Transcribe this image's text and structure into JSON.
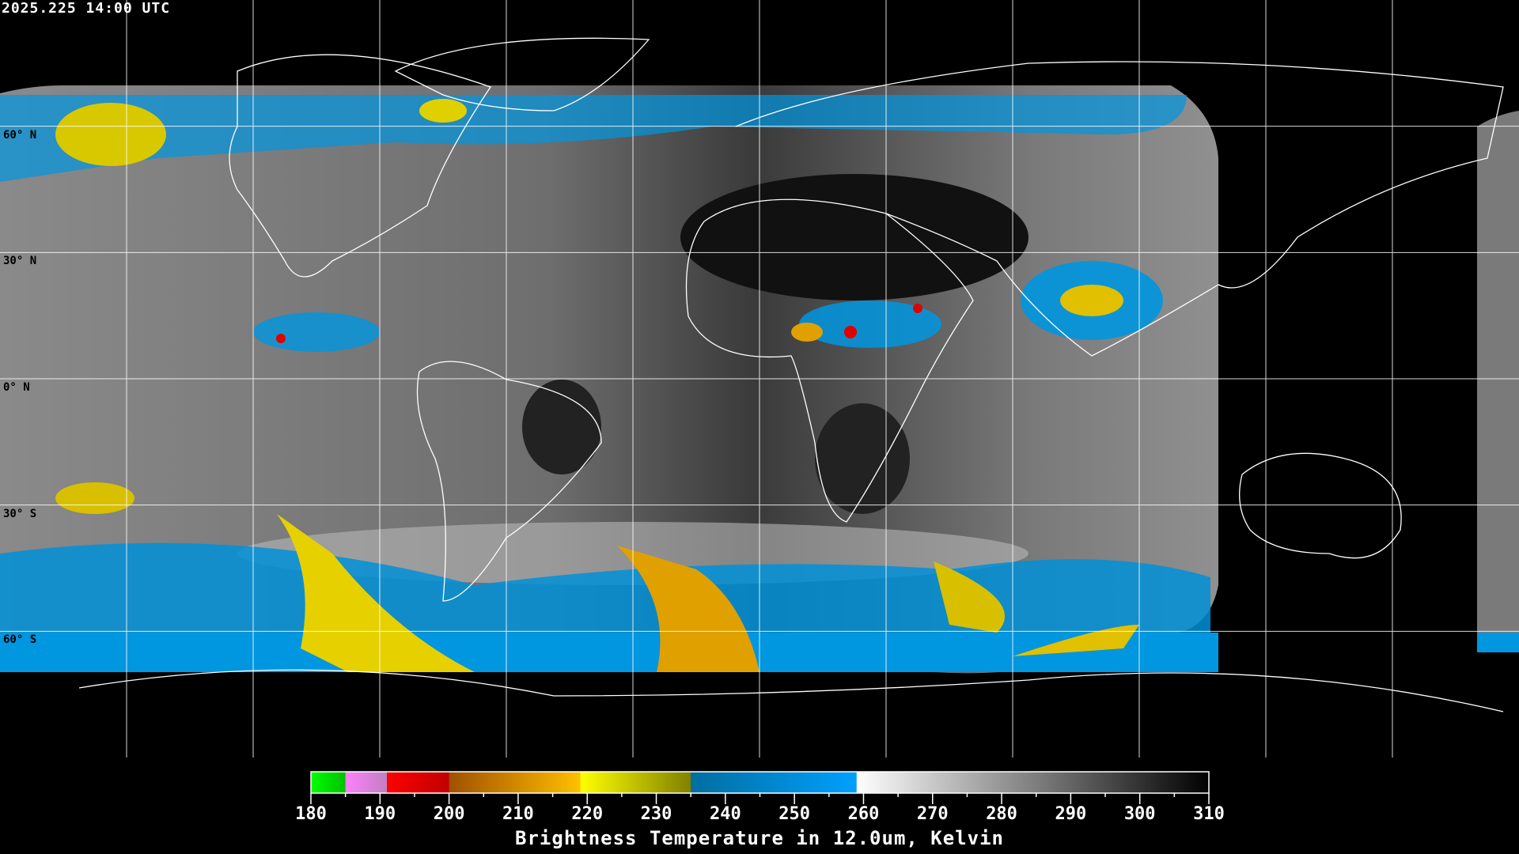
{
  "timestamp": "2025.225 14:00 UTC",
  "map": {
    "projection": "equirectangular",
    "grid_spacing_deg": 30,
    "lat_labels": [
      {
        "lat": 60,
        "label": "60° N"
      },
      {
        "lat": 30,
        "label": "30° N"
      },
      {
        "lat": 0,
        "label": "0° N"
      },
      {
        "lat": -30,
        "label": "30° S"
      },
      {
        "lat": -60,
        "label": "60° S"
      }
    ],
    "background": "#000000",
    "coastline_color": "#ffffff",
    "grid_color": "#ffffff"
  },
  "colorbar": {
    "min": 180,
    "max": 310,
    "tick_labels": [
      "180",
      "190",
      "200",
      "210",
      "220",
      "230",
      "240",
      "250",
      "260",
      "270",
      "280",
      "290",
      "300",
      "310"
    ],
    "segments": [
      {
        "from": 180,
        "to": 185,
        "colors": [
          "#00ff00",
          "#00c000"
        ]
      },
      {
        "from": 185,
        "to": 191,
        "colors": [
          "#ff80ff",
          "#c080c0"
        ]
      },
      {
        "from": 191,
        "to": 200,
        "colors": [
          "#ff0000",
          "#c00000"
        ]
      },
      {
        "from": 200,
        "to": 219,
        "colors": [
          "#a05000",
          "#ffc000"
        ]
      },
      {
        "from": 219,
        "to": 235,
        "colors": [
          "#ffff00",
          "#808000"
        ]
      },
      {
        "from": 235,
        "to": 259,
        "colors": [
          "#006ea0",
          "#00a0ff"
        ]
      },
      {
        "from": 259,
        "to": 310,
        "colors": [
          "#ffffff",
          "#000000"
        ]
      }
    ],
    "title": "Brightness Temperature in 12.0um, Kelvin"
  }
}
